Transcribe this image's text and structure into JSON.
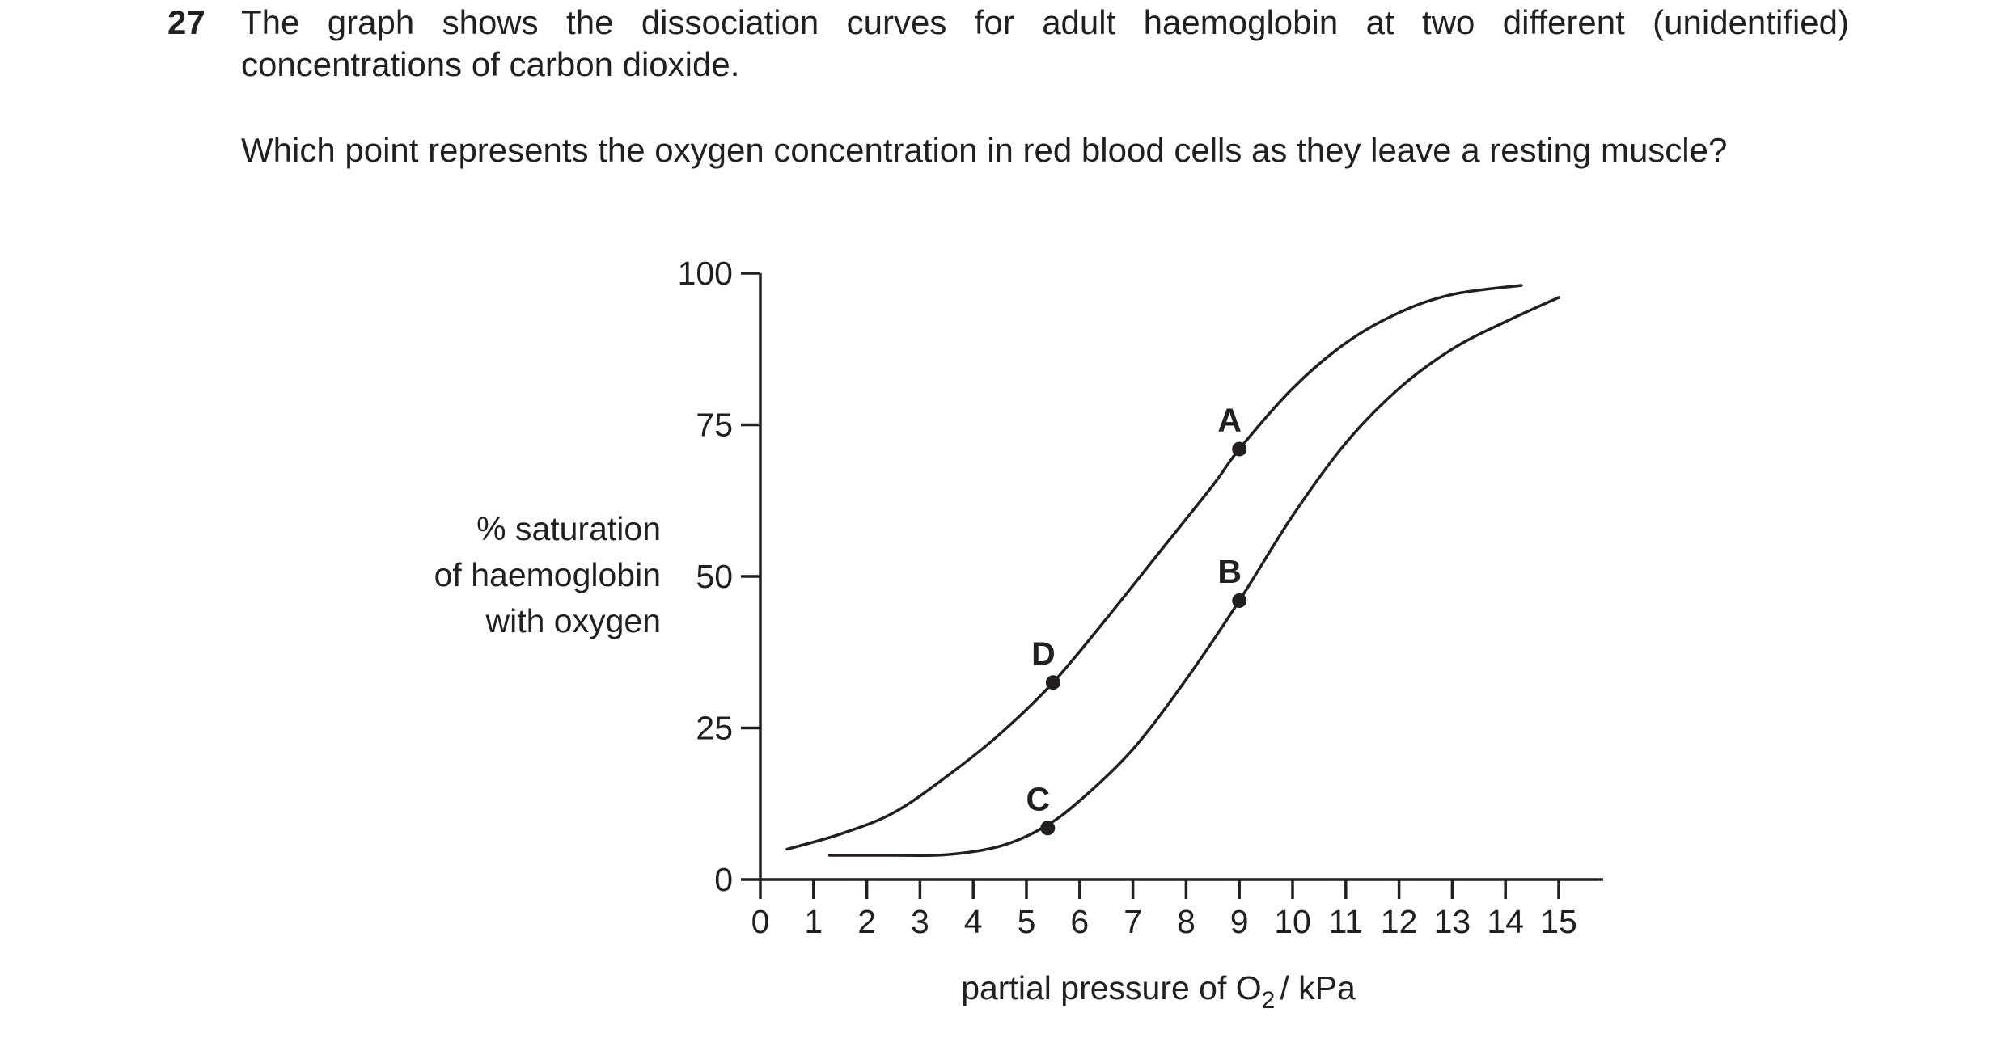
{
  "question": {
    "number": "27",
    "intro": "The graph shows the dissociation curves for adult haemoglobin at two different (unidentified) concentrations of carbon dioxide.",
    "ask": "Which point represents the oxygen concentration in red blood cells as they leave a resting muscle?"
  },
  "chart_data": {
    "type": "line",
    "title": "",
    "xlabel": "partial pressure of O₂ / kPa",
    "xlabel_parts": {
      "main": "partial pressure of O",
      "sub": "2",
      "unit": "/ kPa"
    },
    "ylabel_lines": [
      "% saturation",
      "of haemoglobin",
      "with oxygen"
    ],
    "xlim": [
      0,
      15
    ],
    "ylim": [
      0,
      100
    ],
    "x_ticks": [
      0,
      1,
      2,
      3,
      4,
      5,
      6,
      7,
      8,
      9,
      10,
      11,
      12,
      13,
      14,
      15
    ],
    "y_ticks": [
      0,
      25,
      50,
      75,
      100
    ],
    "grid": false,
    "series": [
      {
        "x": [
          0.5,
          1.5,
          2.5,
          3.5,
          4.5,
          5.5,
          6.5,
          7.5,
          8.5,
          9.0,
          10.0,
          11.0,
          12.0,
          13.0,
          14.3
        ],
        "y": [
          5,
          7.5,
          11,
          17,
          24,
          32.5,
          43,
          54,
          65,
          71,
          81,
          88.5,
          93.5,
          96.5,
          98
        ]
      },
      {
        "x": [
          1.3,
          2.5,
          3.5,
          4.5,
          5.3,
          6.0,
          7.0,
          8.0,
          9.0,
          10.0,
          11.0,
          12.0,
          13.0,
          14.0,
          15.0
        ],
        "y": [
          4,
          4,
          4.1,
          5.5,
          8.5,
          13,
          21.5,
          33,
          46,
          60,
          72,
          81,
          87.5,
          92,
          96
        ]
      }
    ],
    "points": [
      {
        "label": "A",
        "x": 9.0,
        "y": 71
      },
      {
        "label": "B",
        "x": 9.0,
        "y": 46
      },
      {
        "label": "C",
        "x": 5.4,
        "y": 8.5
      },
      {
        "label": "D",
        "x": 5.5,
        "y": 32.5
      }
    ]
  }
}
